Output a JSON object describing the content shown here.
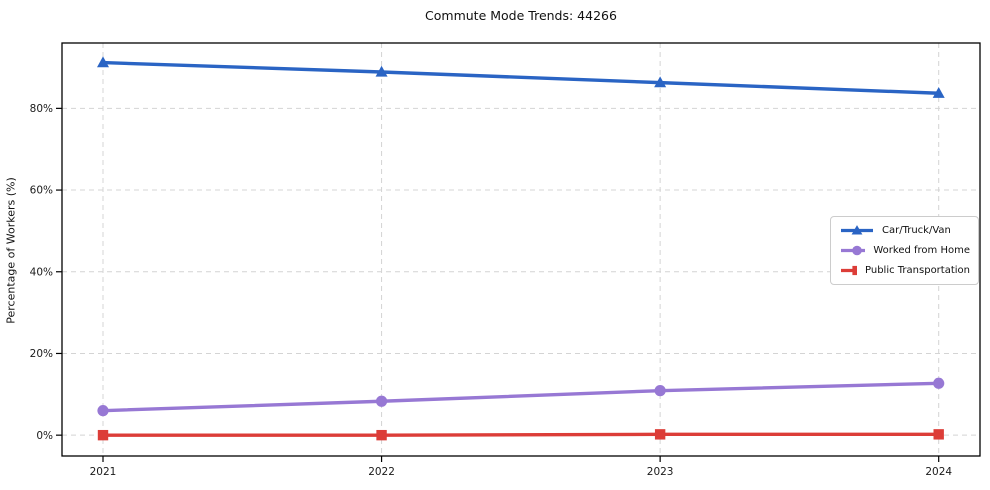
{
  "title": "Commute Mode Trends: 44266",
  "chart_data": {
    "type": "line",
    "title": "Commute Mode Trends: 44266",
    "xlabel": "",
    "ylabel": "Percentage of Workers (%)",
    "x": [
      2021,
      2022,
      2023,
      2024
    ],
    "series": [
      {
        "name": "Car/Truck/Van",
        "color": "#2a64c4",
        "marker": "triangle",
        "values": [
          91.2,
          88.9,
          86.3,
          83.7
        ]
      },
      {
        "name": "Worked from Home",
        "color": "#9778d4",
        "marker": "circle",
        "values": [
          6.0,
          8.3,
          10.9,
          12.7
        ]
      },
      {
        "name": "Public Transportation",
        "color": "#dc3d38",
        "marker": "square",
        "values": [
          0.0,
          0.0,
          0.2,
          0.2
        ]
      }
    ],
    "yticks": [
      0,
      20,
      40,
      60,
      80
    ],
    "ytick_labels": [
      "0%",
      "20%",
      "40%",
      "60%",
      "80%"
    ],
    "ylim": [
      -5.1,
      96
    ],
    "grid": true,
    "grid_style": "dashed",
    "grid_color": "#d4d4d4",
    "spine_color": "#000000",
    "legend_position": "right-middle"
  }
}
